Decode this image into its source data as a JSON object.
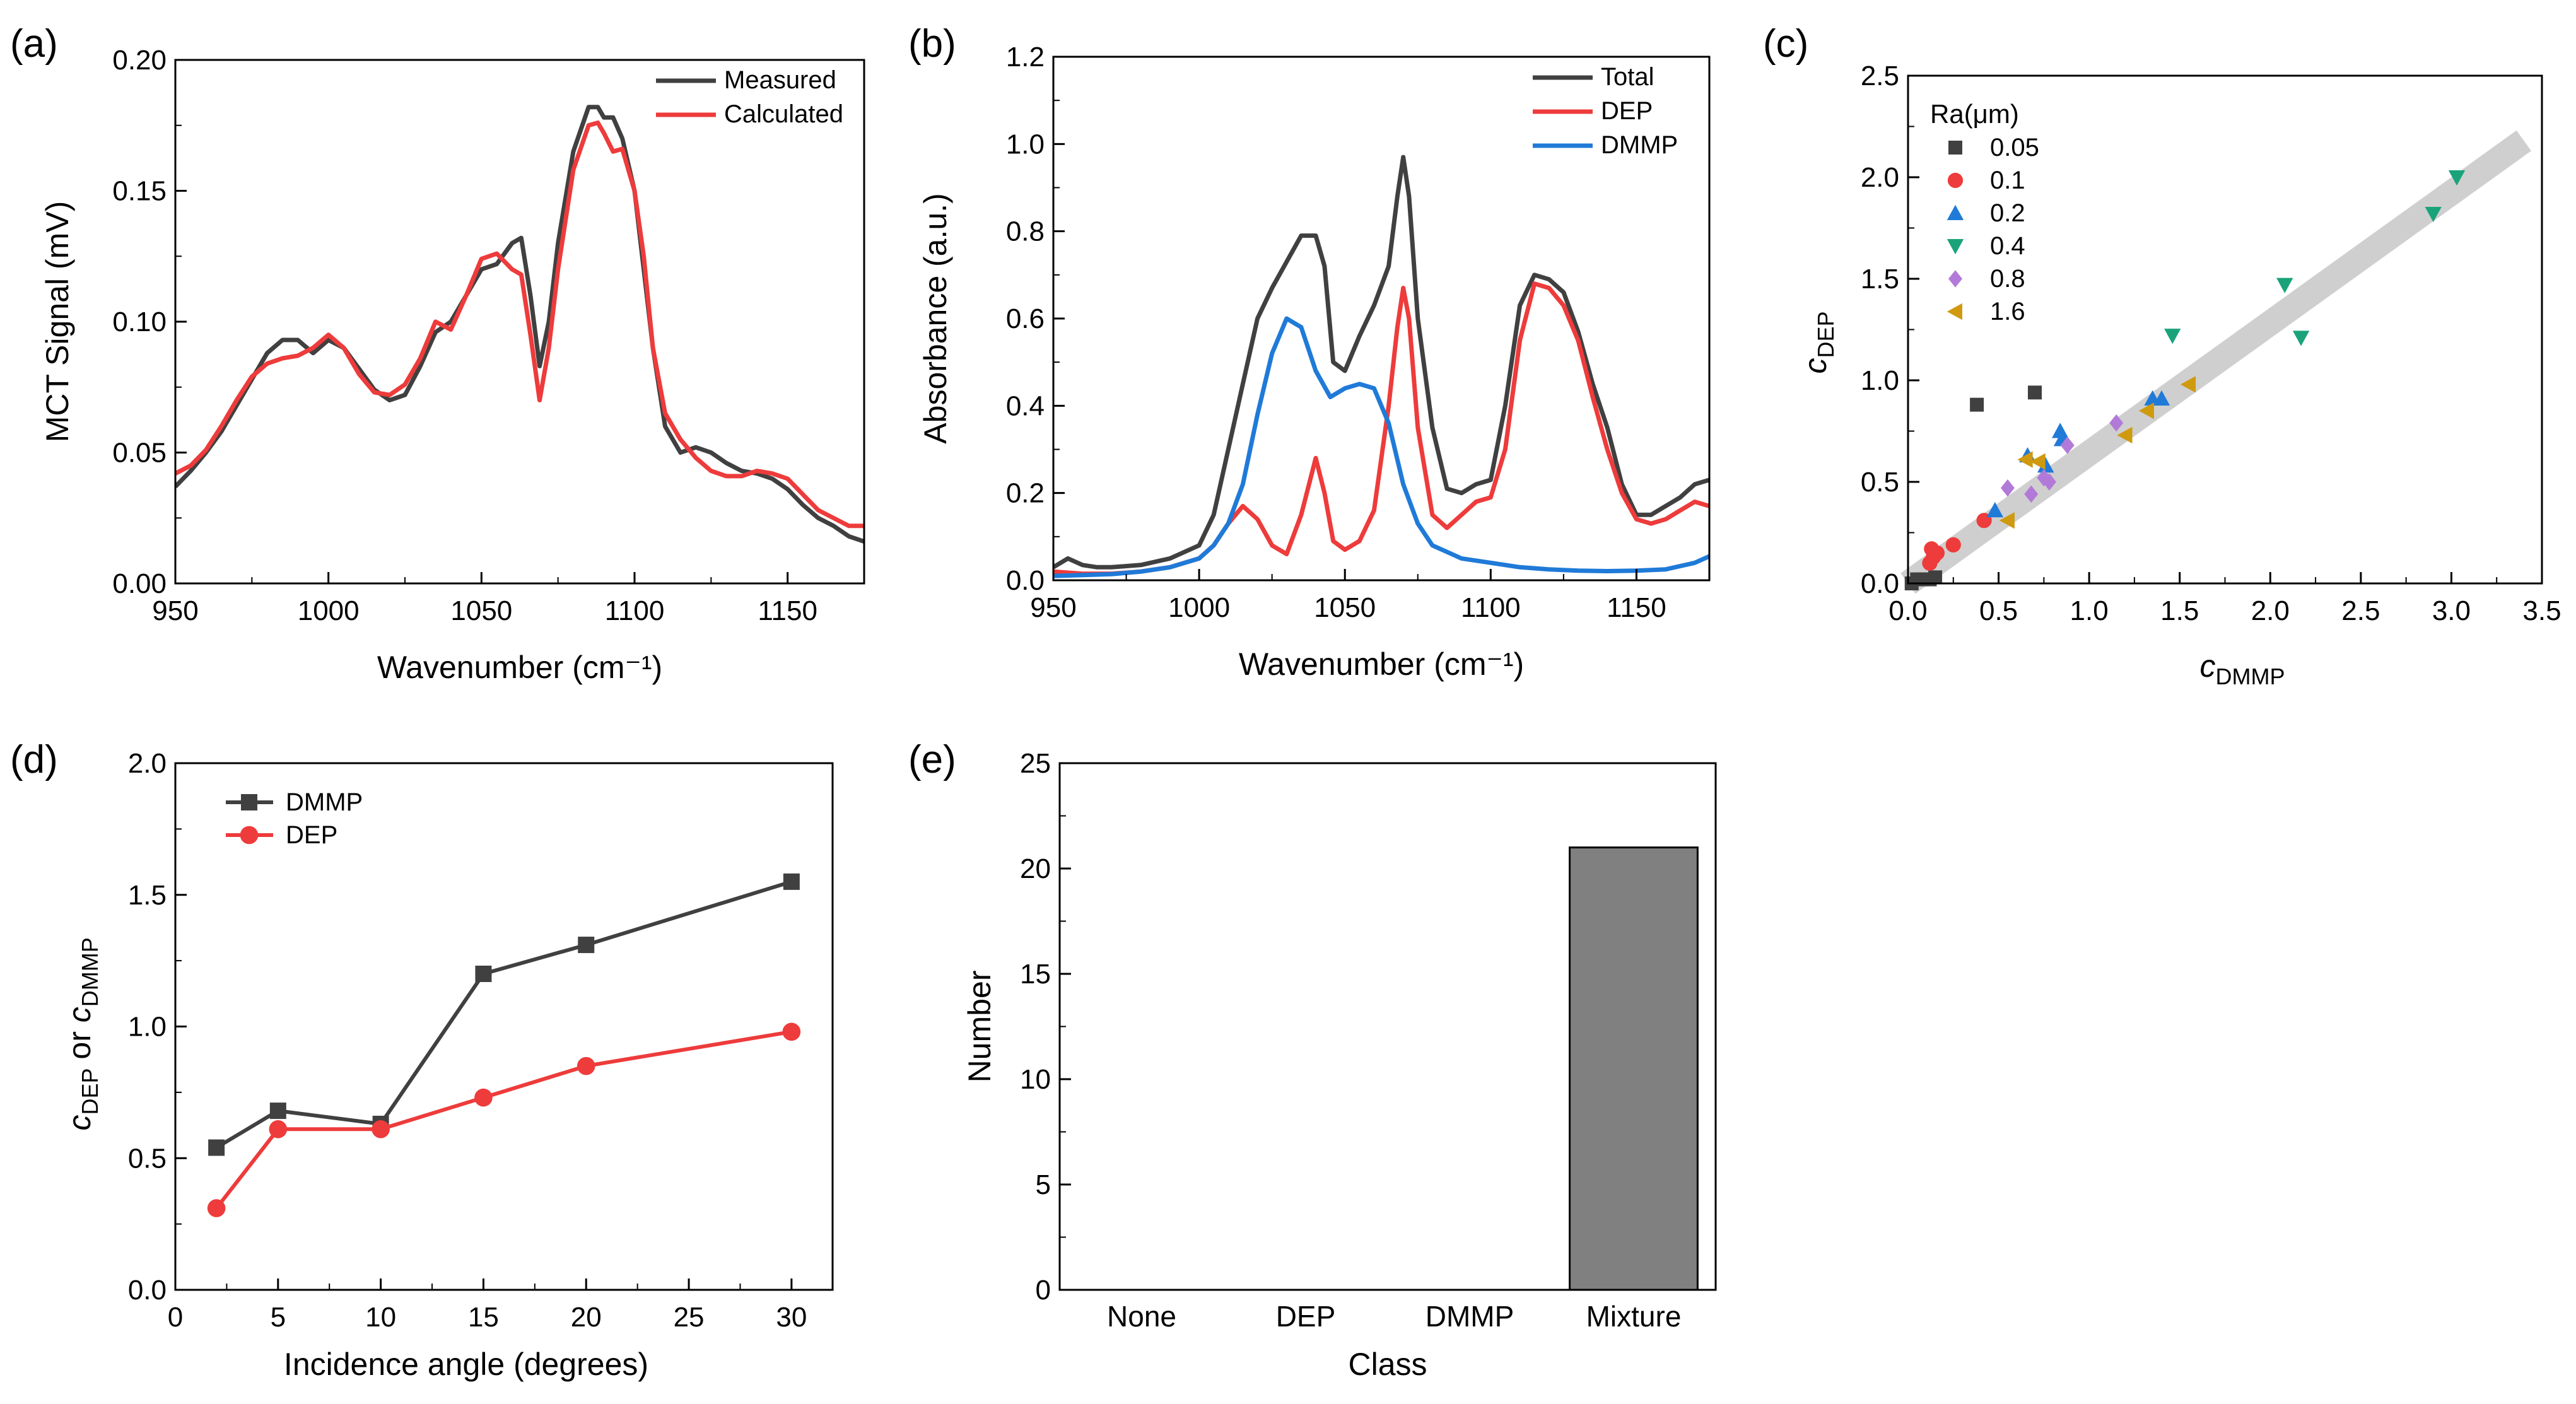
{
  "figure": {
    "panels": [
      "(a)",
      "(b)",
      "(c)",
      "(d)",
      "(e)"
    ]
  },
  "chart_data": [
    {
      "id": "a",
      "type": "line",
      "panel_label": "(a)",
      "xlabel": "Wavenumber (cm⁻¹)",
      "ylabel": "MCT Signal (mV)",
      "xlim": [
        950,
        1175
      ],
      "ylim": [
        0,
        0.2
      ],
      "xticks": [
        950,
        1000,
        1050,
        1100,
        1150
      ],
      "yticks": [
        0.0,
        0.05,
        0.1,
        0.15,
        0.2
      ],
      "xtick_labels": [
        "950",
        "1000",
        "1050",
        "1100",
        "1150"
      ],
      "ytick_labels": [
        "0.00",
        "0.05",
        "0.10",
        "0.15",
        "0.20"
      ],
      "legend": [
        "Measured",
        "Calculated"
      ],
      "series": [
        {
          "name": "Measured",
          "color": "#404040",
          "x": [
            950,
            955,
            960,
            965,
            970,
            975,
            980,
            985,
            990,
            995,
            1000,
            1005,
            1010,
            1015,
            1020,
            1025,
            1030,
            1035,
            1040,
            1045,
            1050,
            1055,
            1060,
            1063,
            1066,
            1069,
            1072,
            1075,
            1080,
            1085,
            1088,
            1090,
            1093,
            1096,
            1100,
            1103,
            1106,
            1110,
            1115,
            1120,
            1125,
            1130,
            1135,
            1140,
            1145,
            1150,
            1155,
            1160,
            1165,
            1170,
            1175
          ],
          "y": [
            0.037,
            0.043,
            0.05,
            0.058,
            0.068,
            0.078,
            0.088,
            0.093,
            0.093,
            0.088,
            0.093,
            0.09,
            0.082,
            0.074,
            0.07,
            0.072,
            0.083,
            0.096,
            0.1,
            0.11,
            0.12,
            0.122,
            0.13,
            0.132,
            0.11,
            0.083,
            0.1,
            0.13,
            0.165,
            0.182,
            0.182,
            0.178,
            0.178,
            0.17,
            0.15,
            0.12,
            0.09,
            0.06,
            0.05,
            0.052,
            0.05,
            0.046,
            0.043,
            0.042,
            0.04,
            0.036,
            0.03,
            0.025,
            0.022,
            0.018,
            0.016
          ]
        },
        {
          "name": "Calculated",
          "color": "#ee3b3b",
          "x": [
            950,
            955,
            960,
            965,
            970,
            975,
            980,
            985,
            990,
            995,
            1000,
            1005,
            1010,
            1015,
            1020,
            1025,
            1030,
            1035,
            1040,
            1045,
            1050,
            1055,
            1060,
            1063,
            1066,
            1069,
            1072,
            1075,
            1080,
            1085,
            1088,
            1090,
            1093,
            1096,
            1100,
            1103,
            1106,
            1110,
            1115,
            1120,
            1125,
            1130,
            1135,
            1140,
            1145,
            1150,
            1155,
            1160,
            1165,
            1170,
            1175
          ],
          "y": [
            0.042,
            0.045,
            0.051,
            0.06,
            0.07,
            0.079,
            0.084,
            0.086,
            0.087,
            0.09,
            0.095,
            0.09,
            0.08,
            0.073,
            0.072,
            0.076,
            0.086,
            0.1,
            0.097,
            0.11,
            0.124,
            0.126,
            0.12,
            0.118,
            0.095,
            0.07,
            0.09,
            0.12,
            0.158,
            0.175,
            0.176,
            0.172,
            0.165,
            0.166,
            0.15,
            0.125,
            0.09,
            0.065,
            0.055,
            0.048,
            0.043,
            0.041,
            0.041,
            0.043,
            0.042,
            0.04,
            0.034,
            0.028,
            0.025,
            0.022,
            0.022
          ]
        }
      ]
    },
    {
      "id": "b",
      "type": "line",
      "panel_label": "(b)",
      "xlabel": "Wavenumber (cm⁻¹)",
      "ylabel": "Absorbance (a.u.)",
      "xlim": [
        950,
        1175
      ],
      "ylim": [
        0,
        1.2
      ],
      "xticks": [
        950,
        1000,
        1050,
        1100,
        1150
      ],
      "yticks": [
        0.0,
        0.2,
        0.4,
        0.6,
        0.8,
        1.0,
        1.2
      ],
      "xtick_labels": [
        "950",
        "1000",
        "1050",
        "1100",
        "1150"
      ],
      "ytick_labels": [
        "0.0",
        "0.2",
        "0.4",
        "0.6",
        "0.8",
        "1.0",
        "1.2"
      ],
      "legend": [
        "Total",
        "DEP",
        "DMMP"
      ],
      "series": [
        {
          "name": "Total",
          "color": "#404040",
          "x": [
            950,
            955,
            960,
            965,
            970,
            980,
            990,
            1000,
            1005,
            1010,
            1015,
            1020,
            1025,
            1030,
            1035,
            1040,
            1043,
            1046,
            1050,
            1055,
            1060,
            1065,
            1068,
            1070,
            1072,
            1075,
            1080,
            1085,
            1090,
            1095,
            1100,
            1105,
            1110,
            1115,
            1120,
            1125,
            1130,
            1135,
            1140,
            1145,
            1150,
            1155,
            1160,
            1165,
            1170,
            1175
          ],
          "y": [
            0.03,
            0.05,
            0.035,
            0.03,
            0.03,
            0.035,
            0.05,
            0.08,
            0.15,
            0.3,
            0.45,
            0.6,
            0.67,
            0.73,
            0.79,
            0.79,
            0.72,
            0.5,
            0.48,
            0.56,
            0.63,
            0.72,
            0.88,
            0.97,
            0.88,
            0.6,
            0.35,
            0.21,
            0.2,
            0.22,
            0.23,
            0.4,
            0.63,
            0.7,
            0.69,
            0.66,
            0.57,
            0.45,
            0.35,
            0.22,
            0.15,
            0.15,
            0.17,
            0.19,
            0.22,
            0.23
          ]
        },
        {
          "name": "DEP",
          "color": "#ee3b3b",
          "x": [
            950,
            960,
            970,
            980,
            990,
            1000,
            1005,
            1010,
            1015,
            1020,
            1025,
            1030,
            1035,
            1040,
            1043,
            1046,
            1050,
            1055,
            1060,
            1065,
            1068,
            1070,
            1072,
            1075,
            1080,
            1085,
            1090,
            1095,
            1100,
            1105,
            1110,
            1115,
            1120,
            1125,
            1130,
            1135,
            1140,
            1145,
            1150,
            1155,
            1160,
            1165,
            1170,
            1175
          ],
          "y": [
            0.02,
            0.015,
            0.015,
            0.02,
            0.03,
            0.05,
            0.08,
            0.13,
            0.17,
            0.14,
            0.08,
            0.06,
            0.15,
            0.28,
            0.2,
            0.09,
            0.07,
            0.09,
            0.16,
            0.4,
            0.58,
            0.67,
            0.6,
            0.35,
            0.15,
            0.12,
            0.15,
            0.18,
            0.19,
            0.3,
            0.55,
            0.68,
            0.67,
            0.63,
            0.55,
            0.42,
            0.3,
            0.2,
            0.14,
            0.13,
            0.14,
            0.16,
            0.18,
            0.17
          ]
        },
        {
          "name": "DMMP",
          "color": "#1f7ad8",
          "x": [
            950,
            960,
            970,
            980,
            990,
            1000,
            1005,
            1010,
            1015,
            1020,
            1025,
            1030,
            1035,
            1040,
            1045,
            1050,
            1055,
            1060,
            1065,
            1070,
            1075,
            1080,
            1090,
            1100,
            1110,
            1120,
            1130,
            1140,
            1150,
            1160,
            1170,
            1175
          ],
          "y": [
            0.01,
            0.012,
            0.014,
            0.02,
            0.03,
            0.05,
            0.08,
            0.13,
            0.22,
            0.38,
            0.52,
            0.6,
            0.58,
            0.48,
            0.42,
            0.44,
            0.45,
            0.44,
            0.36,
            0.22,
            0.13,
            0.08,
            0.05,
            0.04,
            0.03,
            0.025,
            0.022,
            0.021,
            0.022,
            0.025,
            0.04,
            0.055
          ]
        }
      ]
    },
    {
      "id": "c",
      "type": "scatter",
      "panel_label": "(c)",
      "xlabel_main": "c",
      "xlabel_sub": "DMMP",
      "ylabel_main": "c",
      "ylabel_sub": "DEP",
      "xlim": [
        0,
        3.5
      ],
      "ylim": [
        0,
        2.5
      ],
      "xticks": [
        0,
        0.5,
        1.0,
        1.5,
        2.0,
        2.5,
        3.0,
        3.5
      ],
      "yticks": [
        0,
        0.5,
        1.0,
        1.5,
        2.0,
        2.5
      ],
      "xtick_labels": [
        "0.0",
        "0.5",
        "1.0",
        "1.5",
        "2.0",
        "2.5",
        "3.0",
        "3.5"
      ],
      "ytick_labels": [
        "0.0",
        "0.5",
        "1.0",
        "1.5",
        "2.0",
        "2.5"
      ],
      "legend_title": "Ra(μm)",
      "trend_line": {
        "x": [
          0,
          3.4
        ],
        "y": [
          0,
          2.18
        ]
      },
      "series": [
        {
          "name": "0.05",
          "color": "#404040",
          "marker": "square",
          "x": [
            0.02,
            0.05,
            0.08,
            0.12,
            0.15,
            0.38,
            0.7
          ],
          "y": [
            0.0,
            0.02,
            0.02,
            0.02,
            0.03,
            0.88,
            0.94
          ]
        },
        {
          "name": "0.1",
          "color": "#ee3b3b",
          "marker": "circle",
          "x": [
            0.12,
            0.14,
            0.15,
            0.13,
            0.16,
            0.25,
            0.42
          ],
          "y": [
            0.1,
            0.13,
            0.15,
            0.17,
            0.15,
            0.19,
            0.31
          ]
        },
        {
          "name": "0.2",
          "color": "#1f7ad8",
          "marker": "triangle-up",
          "x": [
            0.48,
            0.66,
            0.76,
            0.84,
            0.85,
            1.35,
            1.4
          ],
          "y": [
            0.36,
            0.63,
            0.58,
            0.75,
            0.71,
            0.91,
            0.91
          ]
        },
        {
          "name": "0.4",
          "color": "#1aa37a",
          "marker": "triangle-down",
          "x": [
            1.46,
            2.08,
            2.17,
            2.9,
            3.03
          ],
          "y": [
            1.22,
            1.47,
            1.21,
            1.82,
            2.0
          ]
        },
        {
          "name": "0.8",
          "color": "#b27ad8",
          "marker": "diamond",
          "x": [
            0.55,
            0.68,
            0.75,
            0.78,
            0.88,
            1.15
          ],
          "y": [
            0.47,
            0.44,
            0.52,
            0.5,
            0.68,
            0.79
          ]
        },
        {
          "name": "1.6",
          "color": "#cf9a0f",
          "marker": "triangle-left",
          "x": [
            0.55,
            0.65,
            0.72,
            1.2,
            1.32,
            1.55
          ],
          "y": [
            0.31,
            0.61,
            0.6,
            0.73,
            0.85,
            0.98
          ]
        }
      ]
    },
    {
      "id": "d",
      "type": "line",
      "panel_label": "(d)",
      "xlabel": "Incidence angle (degrees)",
      "ylabel_main": "c",
      "ylabel_sub1": "DEP",
      "ylabel_mid": " or ",
      "ylabel_sub2": "DMMP",
      "xlim": [
        0,
        32
      ],
      "ylim": [
        0,
        2.0
      ],
      "xticks": [
        0,
        5,
        10,
        15,
        20,
        25,
        30
      ],
      "yticks": [
        0,
        0.5,
        1.0,
        1.5,
        2.0
      ],
      "xtick_labels": [
        "0",
        "5",
        "10",
        "15",
        "20",
        "25",
        "30"
      ],
      "ytick_labels": [
        "0.0",
        "0.5",
        "1.0",
        "1.5",
        "2.0"
      ],
      "legend": [
        "DMMP",
        "DEP"
      ],
      "series": [
        {
          "name": "DMMP",
          "color": "#404040",
          "marker": "square",
          "x": [
            2,
            5,
            10,
            15,
            20,
            30
          ],
          "y": [
            0.54,
            0.68,
            0.63,
            1.2,
            1.31,
            1.55
          ]
        },
        {
          "name": "DEP",
          "color": "#ee3b3b",
          "marker": "circle",
          "x": [
            2,
            5,
            10,
            15,
            20,
            30
          ],
          "y": [
            0.31,
            0.61,
            0.61,
            0.73,
            0.85,
            0.98
          ]
        }
      ]
    },
    {
      "id": "e",
      "type": "bar",
      "panel_label": "(e)",
      "xlabel": "Class",
      "ylabel": "Number",
      "categories": [
        "None",
        "DEP",
        "DMMP",
        "Mixture"
      ],
      "values": [
        0,
        0,
        0,
        21
      ],
      "ylim": [
        0,
        25
      ],
      "yticks": [
        0,
        5,
        10,
        15,
        20,
        25
      ],
      "ytick_labels": [
        "0",
        "5",
        "10",
        "15",
        "20",
        "25"
      ],
      "bar_color": "#808080"
    }
  ]
}
